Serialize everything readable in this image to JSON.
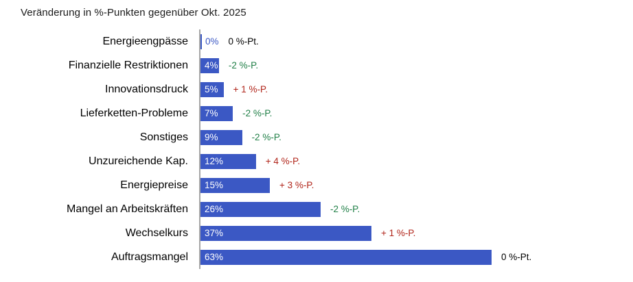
{
  "title": "Veränderung in %-Punkten gegenüber Okt. 2025",
  "chart_data": {
    "type": "bar",
    "orientation": "horizontal",
    "title": "Veränderung in %-Punkten gegenüber Okt. 2025",
    "categories": [
      "Energieengpässe",
      "Finanzielle Restriktionen",
      "Innovationsdruck",
      "Lieferketten-Probleme",
      "Sonstiges",
      "Unzureichende Kap.",
      "Energiepreise",
      "Mangel an Arbeitskräften",
      "Wechselkurs",
      "Auftragsmangel"
    ],
    "values": [
      0,
      4,
      5,
      7,
      9,
      12,
      15,
      26,
      37,
      63
    ],
    "value_labels": [
      "0%",
      "4%",
      "5%",
      "7%",
      "9%",
      "12%",
      "15%",
      "26%",
      "37%",
      "63%"
    ],
    "changes": [
      {
        "label": "0 %-Pt.",
        "kind": "neutral"
      },
      {
        "label": "-2 %-P.",
        "kind": "negative"
      },
      {
        "label": "+ 1 %-P.",
        "kind": "positive"
      },
      {
        "label": "-2 %-P.",
        "kind": "negative"
      },
      {
        "label": "-2 %-P.",
        "kind": "negative"
      },
      {
        "label": "+ 4 %-P.",
        "kind": "positive"
      },
      {
        "label": "+ 3 %-P.",
        "kind": "positive"
      },
      {
        "label": "-2 %-P.",
        "kind": "negative"
      },
      {
        "label": "+ 1 %-P.",
        "kind": "positive"
      },
      {
        "label": "0 %-Pt.",
        "kind": "neutral"
      }
    ],
    "colors": {
      "bar": "#3B58C4",
      "value_label_inside": "#FFFFFF",
      "value_label_outside": "#3B58C4",
      "positive_change": "#B02318",
      "negative_change": "#1E7E45",
      "neutral_change": "#000000",
      "axis": "#A6A6A6"
    },
    "xlim": [
      0,
      66
    ],
    "grid": false,
    "legend": false
  }
}
